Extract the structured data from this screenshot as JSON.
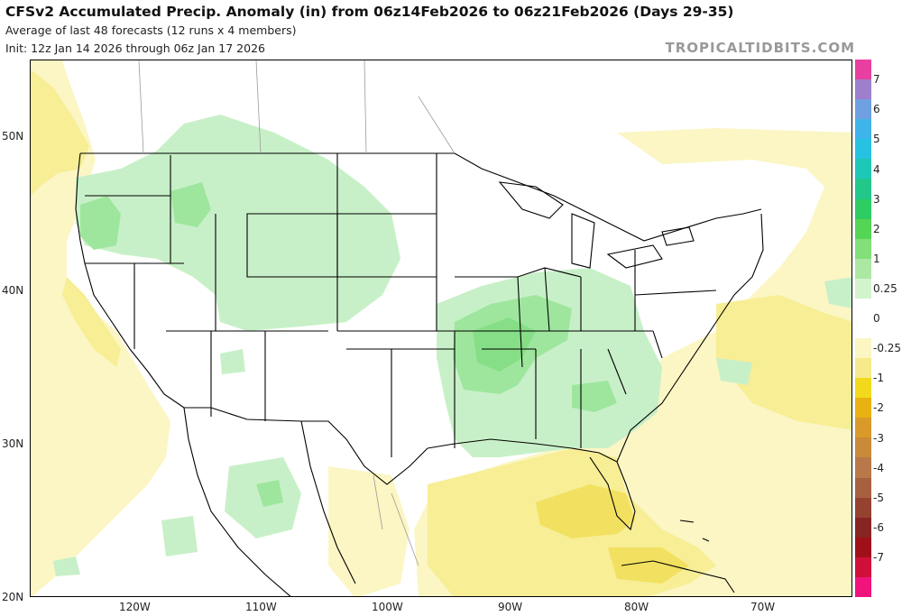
{
  "header": {
    "title": "CFSv2 Accumulated Precip. Anomaly (in) from 06z14Feb2026 to 06z21Feb2026 (Days 29-35)",
    "subtitle": "Average of last 48 forecasts (12 runs x 4 members)",
    "init": "Init: 12z Jan 14 2026 through 06z Jan 17 2026",
    "brand": "TROPICALTIDBITS.COM"
  },
  "map": {
    "lat_labels": [
      "50N",
      "40N",
      "30N",
      "20N"
    ],
    "lon_labels": [
      "120W",
      "110W",
      "100W",
      "90W",
      "80W",
      "70W"
    ],
    "colors": {
      "wet_light": "#c8f0c8",
      "wet_mid": "#9ee69e",
      "wet_dark": "#86de86",
      "dry_light": "#fbf6c4",
      "dry_mid": "#f7ee95",
      "dry_strong": "#f2e060"
    }
  },
  "colorbar": {
    "ticks": [
      "7",
      "6",
      "5",
      "4",
      "3",
      "2",
      "1",
      "0.25",
      "0",
      "-0.25",
      "-1",
      "-2",
      "-3",
      "-4",
      "-5",
      "-6",
      "-7"
    ],
    "colors": [
      "#e83fa0",
      "#9e7fcb",
      "#6fa0e0",
      "#3fb4ea",
      "#27c2e2",
      "#1ec8b6",
      "#22c88a",
      "#2ecc62",
      "#54d654",
      "#82df7a",
      "#abe8a4",
      "#d2f3cc",
      "#ffffff",
      "#ffffff",
      "#fbf6c4",
      "#f6ea8a",
      "#f2d91c",
      "#e8b212",
      "#d99a2a",
      "#c98a3a",
      "#b9784a",
      "#a76040",
      "#964230",
      "#872424",
      "#a01018",
      "#d0103a",
      "#f0147c"
    ]
  }
}
